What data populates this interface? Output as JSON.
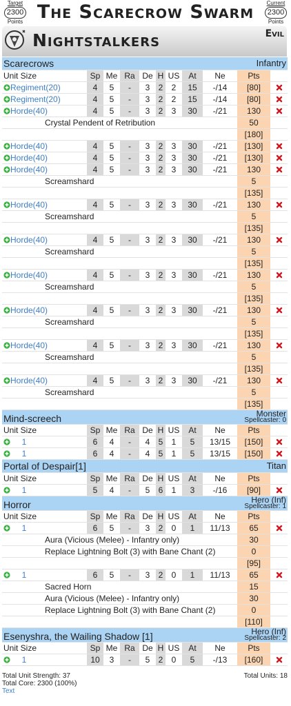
{
  "header": {
    "target_label": "Target",
    "target_value": 2300,
    "target_unit": "Points",
    "title": "The Scarecrow Swarm",
    "current_label": "Current",
    "current_value": 2300,
    "current_unit": "Points"
  },
  "army": {
    "name": "Nightstalkers",
    "alignment": "Evil"
  },
  "columns": [
    "Unit Size",
    "Sp",
    "Me",
    "Ra",
    "De",
    "H",
    "US",
    "At",
    "Ne",
    "Pts"
  ],
  "sections": [
    {
      "name": "Scarecrows",
      "type": "Infantry",
      "units": [
        {
          "cells": [
            "Regiment(20)",
            4,
            5,
            "-",
            3,
            2,
            2,
            15,
            "-/14",
            "[80]"
          ]
        },
        {
          "cells": [
            "Regiment(20)",
            4,
            5,
            "-",
            3,
            2,
            2,
            15,
            "-/14",
            "[80]"
          ]
        },
        {
          "cells": [
            "Horde(40)",
            4,
            5,
            "-",
            3,
            2,
            3,
            30,
            "-/21",
            130
          ],
          "upgrades": [
            {
              "name": "Crystal Pendent of Retribution",
              "pts": 50
            }
          ],
          "total": "[180]"
        },
        {
          "cells": [
            "Horde(40)",
            4,
            5,
            "-",
            3,
            2,
            3,
            30,
            "-/21",
            "[130]"
          ]
        },
        {
          "cells": [
            "Horde(40)",
            4,
            5,
            "-",
            3,
            2,
            3,
            30,
            "-/21",
            "[130]"
          ]
        },
        {
          "cells": [
            "Horde(40)",
            4,
            5,
            "-",
            3,
            2,
            3,
            30,
            "-/21",
            130
          ],
          "upgrades": [
            {
              "name": "Screamshard",
              "pts": 5
            }
          ],
          "total": "[135]"
        },
        {
          "cells": [
            "Horde(40)",
            4,
            5,
            "-",
            3,
            2,
            3,
            30,
            "-/21",
            130
          ],
          "upgrades": [
            {
              "name": "Screamshard",
              "pts": 5
            }
          ],
          "total": "[135]"
        },
        {
          "cells": [
            "Horde(40)",
            4,
            5,
            "-",
            3,
            2,
            3,
            30,
            "-/21",
            130
          ],
          "upgrades": [
            {
              "name": "Screamshard",
              "pts": 5
            }
          ],
          "total": "[135]"
        },
        {
          "cells": [
            "Horde(40)",
            4,
            5,
            "-",
            3,
            2,
            3,
            30,
            "-/21",
            130
          ],
          "upgrades": [
            {
              "name": "Screamshard",
              "pts": 5
            }
          ],
          "total": "[135]"
        },
        {
          "cells": [
            "Horde(40)",
            4,
            5,
            "-",
            3,
            2,
            3,
            30,
            "-/21",
            130
          ],
          "upgrades": [
            {
              "name": "Screamshard",
              "pts": 5
            }
          ],
          "total": "[135]"
        },
        {
          "cells": [
            "Horde(40)",
            4,
            5,
            "-",
            3,
            2,
            3,
            30,
            "-/21",
            130
          ],
          "upgrades": [
            {
              "name": "Screamshard",
              "pts": 5
            }
          ],
          "total": "[135]"
        },
        {
          "cells": [
            "Horde(40)",
            4,
            5,
            "-",
            3,
            2,
            3,
            30,
            "-/21",
            130
          ],
          "upgrades": [
            {
              "name": "Screamshard",
              "pts": 5
            }
          ],
          "total": "[135]"
        }
      ]
    },
    {
      "name": "Mind-screech",
      "type": "Monster",
      "spellcaster": "Spellcaster: 0",
      "units": [
        {
          "cells": [
            1,
            6,
            4,
            "-",
            4,
            5,
            1,
            5,
            "13/15",
            "[150]"
          ]
        },
        {
          "cells": [
            1,
            6,
            4,
            "-",
            4,
            5,
            1,
            5,
            "13/15",
            "[150]"
          ]
        }
      ]
    },
    {
      "name": "Portal of Despair[1]",
      "type": "Titan",
      "units": [
        {
          "cells": [
            1,
            5,
            4,
            "-",
            5,
            6,
            1,
            3,
            "-/16",
            "[90]"
          ]
        }
      ]
    },
    {
      "name": "Horror",
      "type": "Hero (Inf)",
      "spellcaster": "Spellcaster: 1",
      "units": [
        {
          "cells": [
            1,
            6,
            5,
            "-",
            3,
            2,
            0,
            1,
            "11/13",
            65
          ],
          "upgrades": [
            {
              "name": "Aura (Vicious (Melee) - Infantry only)",
              "pts": 30
            },
            {
              "name": "Replace Lightning Bolt (3) with Bane Chant (2)",
              "pts": 0
            }
          ],
          "total": "[95]"
        },
        {
          "cells": [
            1,
            6,
            5,
            "-",
            3,
            2,
            0,
            1,
            "11/13",
            65
          ],
          "upgrades": [
            {
              "name": "Sacred Horn",
              "pts": 15
            },
            {
              "name": "Aura (Vicious (Melee) - Infantry only)",
              "pts": 30
            },
            {
              "name": "Replace Lightning Bolt (3) with Bane Chant (2)",
              "pts": 0
            }
          ],
          "total": "[110]"
        }
      ]
    },
    {
      "name": "Esenyshra, the Wailing Shadow [1]",
      "type": "Hero (Inf)",
      "spellcaster": "Spellcaster: 2",
      "units": [
        {
          "cells": [
            1,
            10,
            3,
            "-",
            5,
            2,
            0,
            5,
            "-/13",
            "[160]"
          ]
        }
      ]
    }
  ],
  "footer": {
    "strength": "Total Unit Strength: 37",
    "units": "Total Units: 18",
    "core": "Total Core: 2300 (100%)",
    "link": "Text"
  }
}
